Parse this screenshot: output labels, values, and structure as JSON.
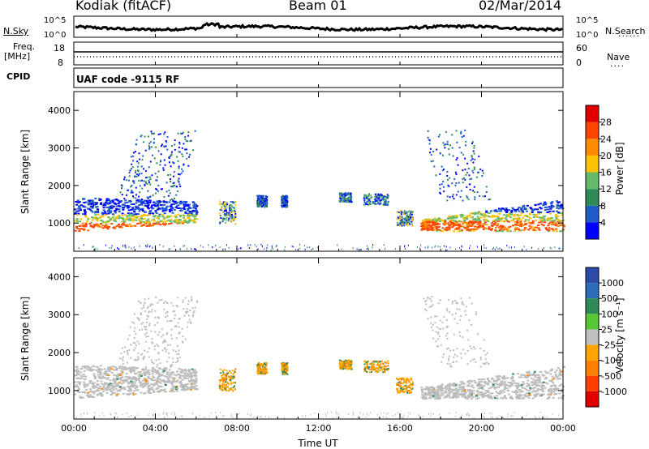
{
  "header": {
    "station": "Kodiak (fitACF)",
    "beam": "Beam 01",
    "date": "02/Mar/2014"
  },
  "panels": {
    "nsky_label": "N.Sky",
    "nsearch_label": "N.Search",
    "nsky_ticks": [
      "10^5",
      "10^0"
    ],
    "nsearch_ticks": [
      "10^5",
      "10^0"
    ],
    "freq_label": "Freq.",
    "freq_unit": "[MHz]",
    "freq_ticks": [
      "18",
      "8"
    ],
    "nave_label": "Nave",
    "nave_ticks": [
      "60",
      "0"
    ],
    "cpid_label": "CPID",
    "cpid_text": "UAF code -9115 RF"
  },
  "chart_data": [
    {
      "type": "heatmap",
      "name": "power",
      "ylabel": "Slant Range [km]",
      "xlabel": "",
      "x_ticks": [
        "00:00",
        "04:00",
        "08:00",
        "12:00",
        "16:00",
        "20:00",
        "00:00"
      ],
      "y_ticks": [
        1000,
        2000,
        3000,
        4000
      ],
      "ylim": [
        250,
        4500
      ],
      "colorbar_label": "Power [dB]",
      "colorbar_ticks": [
        "4",
        "8",
        "12",
        "16",
        "20",
        "24",
        "28"
      ],
      "colorbar_colors": [
        "#0000ff",
        "#1e5cc8",
        "#2e8b57",
        "#66bb6a",
        "#ffc107",
        "#ff8c00",
        "#ff4500",
        "#e00000"
      ]
    },
    {
      "type": "heatmap",
      "name": "velocity",
      "ylabel": "Slant Range [km]",
      "xlabel": "Time UT",
      "x_ticks": [
        "00:00",
        "04:00",
        "08:00",
        "12:00",
        "16:00",
        "20:00",
        "00:00"
      ],
      "y_ticks": [
        1000,
        2000,
        3000,
        4000
      ],
      "ylim": [
        250,
        4500
      ],
      "colorbar_label": "Velocity [m s⁻¹]",
      "colorbar_ticks": [
        "1000",
        "500",
        "100",
        "25",
        "-25",
        "-100",
        "-500",
        "-1000"
      ],
      "colorbar_colors": [
        "#2c4ba8",
        "#2e6bbd",
        "#2e8b57",
        "#55c833",
        "#c0c0c0",
        "#ffa500",
        "#ff7f00",
        "#ff4000",
        "#e00000"
      ]
    }
  ]
}
